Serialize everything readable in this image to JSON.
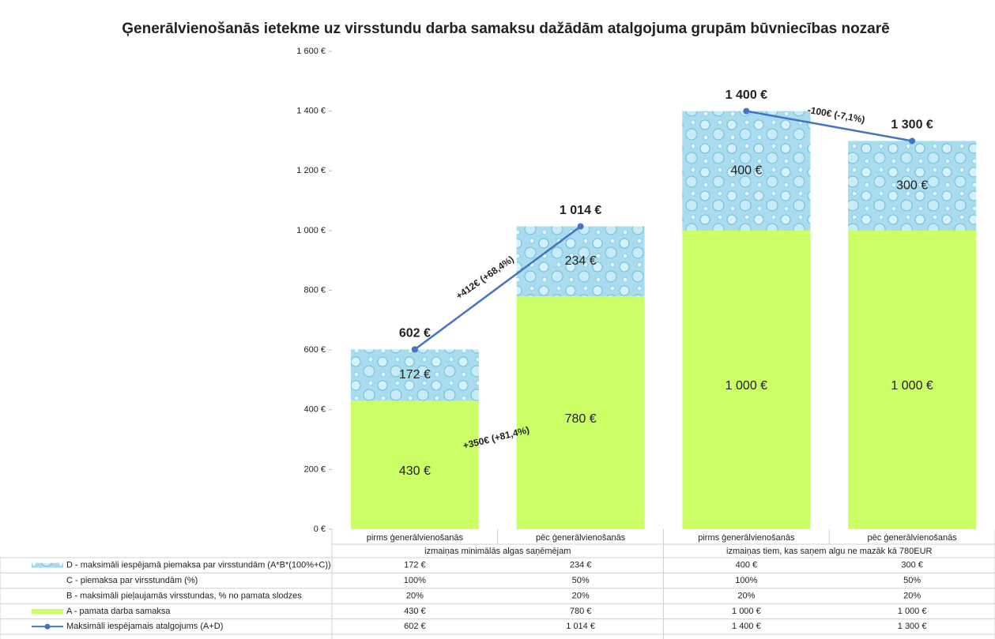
{
  "chart_data": {
    "type": "bar",
    "stacked": true,
    "title": "Ģenerālvienošanās ietekme uz virsstundu darba samaksu dažādām atalgojuma grupām būvniecības nozarē",
    "categories": [
      "pirms ģenerālvienošanās",
      "pēc ģenerālvienošanās",
      "pirms ģenerālvienošanās",
      "pēc ģenerālvienošanās"
    ],
    "groups": [
      {
        "label": "izmaiņas minimālās algas saņēmējam",
        "categories": [
          0,
          1
        ]
      },
      {
        "label": "izmaiņas tiem, kas saņem algu ne mazāk kā 780EUR",
        "categories": [
          2,
          3
        ]
      }
    ],
    "ylim": [
      0,
      1600
    ],
    "yticks": [
      {
        "value": 0,
        "label": "0 €"
      },
      {
        "value": 200,
        "label": "200 €"
      },
      {
        "value": 400,
        "label": "400 €"
      },
      {
        "value": 600,
        "label": "600 €"
      },
      {
        "value": 800,
        "label": "800 €"
      },
      {
        "value": 1000,
        "label": "1 000 €"
      },
      {
        "value": 1200,
        "label": "1 200 €"
      },
      {
        "value": 1400,
        "label": "1 400 €"
      },
      {
        "value": 1600,
        "label": "1 600 €"
      }
    ],
    "series": [
      {
        "name": "D - maksimāli iespējamā piemaksa par virsstundām (A*B*(100%+C))",
        "type": "bar",
        "color": "#a8dcee",
        "values": [
          172,
          234,
          400,
          300
        ],
        "value_labels": [
          "172 €",
          "234 €",
          "400 €",
          "300 €"
        ]
      },
      {
        "name": "C - piemaksa par virsstundām (%)",
        "values": [
          100,
          50,
          100,
          50
        ],
        "value_labels": [
          "100%",
          "50%",
          "100%",
          "50%"
        ]
      },
      {
        "name": "B - maksimāli pieļaujamās virsstundas, % no pamata slodzes",
        "values": [
          20,
          20,
          20,
          20
        ],
        "value_labels": [
          "20%",
          "20%",
          "20%",
          "20%"
        ]
      },
      {
        "name": "A - pamata darba samaksa",
        "type": "bar",
        "color": "#ccff66",
        "values": [
          430,
          780,
          1000,
          1000
        ],
        "value_labels": [
          "430 €",
          "780 €",
          "1 000 €",
          "1 000 €"
        ]
      },
      {
        "name": "Maksimāli iespējamais atalgojums (A+D)",
        "type": "line",
        "color": "#4472c4",
        "values": [
          602,
          1014,
          1400,
          1300
        ],
        "value_labels": [
          "602 €",
          "1 014 €",
          "1 400 €",
          "1 300 €"
        ]
      }
    ],
    "annotations": [
      "+412€ (+68,4%)",
      "+350€ (+81,4%)",
      "-100€ (-7,1%)"
    ]
  }
}
